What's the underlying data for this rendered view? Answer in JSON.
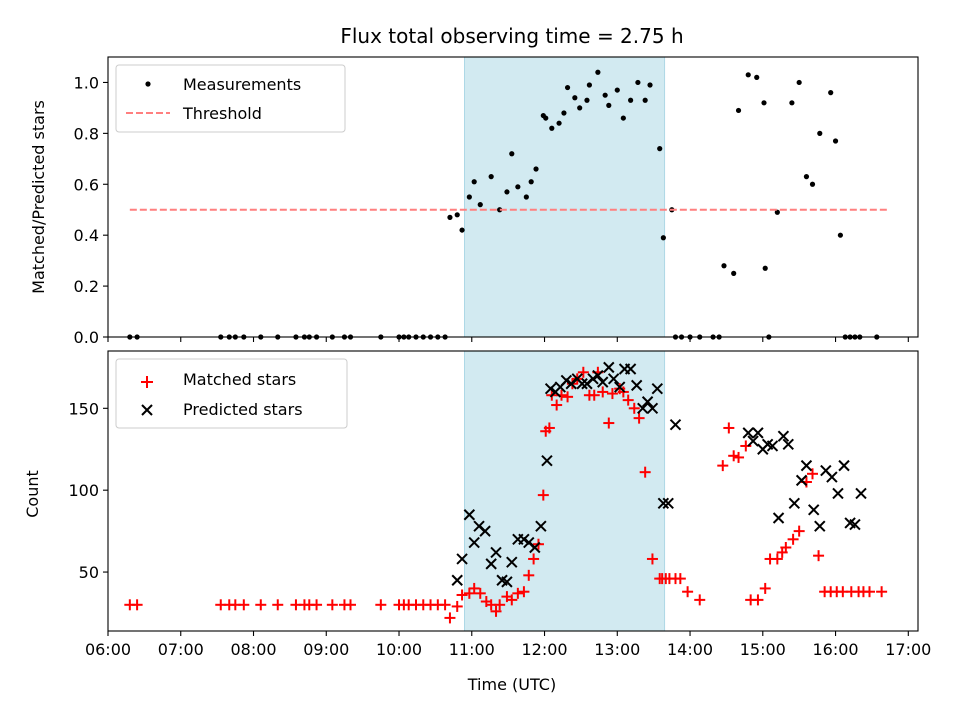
{
  "figure": {
    "title": "Flux total observing time = 2.75 h",
    "shade_color": "#add8e6"
  },
  "chart_data": [
    {
      "type": "scatter",
      "ylabel": "Matched/Predicted stars",
      "xlabel": "",
      "xlim": [
        "06:00",
        "17:08"
      ],
      "ylim": [
        0,
        1.1
      ],
      "yticks": [
        0.0,
        0.2,
        0.4,
        0.6,
        0.8,
        1.0
      ],
      "ytick_labels": [
        "0.0",
        "0.2",
        "0.4",
        "0.6",
        "0.8",
        "1.0"
      ],
      "shaded_region": [
        "10:54",
        "13:39"
      ],
      "legend_position": "upper-left",
      "grid": false,
      "series": [
        {
          "name": "Measurements",
          "marker": "dot",
          "color": "#000000",
          "x": [
            "06:18",
            "06:24",
            "07:33",
            "07:40",
            "07:45",
            "07:52",
            "08:06",
            "08:20",
            "08:35",
            "08:42",
            "08:46",
            "08:52",
            "09:05",
            "09:15",
            "09:20",
            "09:45",
            "10:00",
            "10:04",
            "10:08",
            "10:14",
            "10:20",
            "10:26",
            "10:32",
            "10:38",
            "10:42",
            "10:48",
            "10:52",
            "10:58",
            "11:02",
            "11:07",
            "11:16",
            "11:23",
            "11:29",
            "11:33",
            "11:38",
            "11:45",
            "11:49",
            "11:53",
            "11:59",
            "12:01",
            "12:06",
            "12:12",
            "12:16",
            "12:19",
            "12:25",
            "12:29",
            "12:35",
            "12:37",
            "12:44",
            "12:50",
            "12:53",
            "13:00",
            "13:05",
            "13:11",
            "13:17",
            "13:23",
            "13:27",
            "13:35",
            "13:38",
            "13:45",
            "13:48",
            "13:53",
            "14:00",
            "14:08",
            "14:19",
            "14:24",
            "14:28",
            "14:36",
            "14:40",
            "14:48",
            "14:55",
            "15:01",
            "15:02",
            "15:05",
            "15:12",
            "15:24",
            "15:30",
            "15:36",
            "15:41",
            "15:47",
            "15:56",
            "16:00",
            "16:04",
            "16:08",
            "16:12",
            "16:16",
            "16:20",
            "16:34"
          ],
          "y": [
            0.0,
            0.0,
            0.0,
            0.0,
            0.0,
            0.0,
            0.0,
            0.0,
            0.0,
            0.0,
            0.0,
            0.0,
            0.0,
            0.0,
            0.0,
            0.0,
            0.0,
            0.0,
            0.0,
            0.0,
            0.0,
            0.0,
            0.0,
            0.0,
            0.47,
            0.48,
            0.42,
            0.55,
            0.61,
            0.52,
            0.63,
            0.5,
            0.57,
            0.72,
            0.59,
            0.55,
            0.61,
            0.66,
            0.87,
            0.86,
            0.82,
            0.84,
            0.88,
            0.98,
            0.94,
            0.9,
            0.93,
            0.99,
            1.04,
            0.95,
            0.91,
            0.97,
            0.86,
            0.93,
            1.0,
            0.93,
            0.99,
            0.74,
            0.39,
            0.5,
            0.0,
            0.0,
            0.0,
            0.0,
            0.0,
            0.0,
            0.28,
            0.25,
            0.89,
            1.03,
            1.02,
            0.92,
            0.27,
            0.0,
            0.49,
            0.92,
            1.0,
            0.63,
            0.6,
            0.8,
            0.96,
            0.77,
            0.4,
            0.0,
            0.0,
            0.0,
            0.0,
            0.0
          ]
        },
        {
          "name": "Threshold",
          "style": "dashed",
          "color": "#ff7f7f",
          "x": [
            "06:18",
            "16:43"
          ],
          "y": [
            0.5,
            0.5
          ]
        }
      ]
    },
    {
      "type": "scatter",
      "ylabel": "Count",
      "xlabel": "Time (UTC)",
      "xlim": [
        "06:00",
        "17:08"
      ],
      "ylim": [
        14,
        185
      ],
      "yticks": [
        50,
        100,
        150
      ],
      "ytick_labels": [
        "50",
        "100",
        "150"
      ],
      "xticks": [
        "06:00",
        "07:00",
        "08:00",
        "09:00",
        "10:00",
        "11:00",
        "12:00",
        "13:00",
        "14:00",
        "15:00",
        "16:00",
        "17:00"
      ],
      "shaded_region": [
        "10:54",
        "13:39"
      ],
      "legend_position": "upper-left",
      "grid": false,
      "series": [
        {
          "name": "Matched stars",
          "marker": "plus",
          "color": "#ff0000",
          "x": [
            "06:18",
            "06:24",
            "07:33",
            "07:40",
            "07:45",
            "07:52",
            "08:06",
            "08:20",
            "08:35",
            "08:42",
            "08:46",
            "08:52",
            "09:05",
            "09:15",
            "09:20",
            "09:45",
            "10:00",
            "10:04",
            "10:08",
            "10:14",
            "10:20",
            "10:26",
            "10:32",
            "10:38",
            "10:42",
            "10:48",
            "10:52",
            "10:58",
            "11:02",
            "11:07",
            "11:12",
            "11:16",
            "11:20",
            "11:23",
            "11:29",
            "11:33",
            "11:38",
            "11:43",
            "11:47",
            "11:51",
            "11:55",
            "11:59",
            "12:01",
            "12:04",
            "12:06",
            "12:10",
            "12:14",
            "12:19",
            "12:23",
            "12:27",
            "12:32",
            "12:37",
            "12:41",
            "12:44",
            "12:48",
            "12:53",
            "12:56",
            "13:02",
            "13:05",
            "13:09",
            "13:14",
            "13:18",
            "13:23",
            "13:29",
            "13:35",
            "13:37",
            "13:40",
            "13:43",
            "13:48",
            "13:52",
            "13:58",
            "14:08",
            "14:27",
            "14:32",
            "14:36",
            "14:40",
            "14:46",
            "14:50",
            "14:56",
            "15:02",
            "15:06",
            "15:12",
            "15:16",
            "15:19",
            "15:25",
            "15:30",
            "15:36",
            "15:41",
            "15:46",
            "15:51",
            "15:56",
            "16:01",
            "16:06",
            "16:13",
            "16:19",
            "16:23",
            "16:28",
            "16:38"
          ],
          "y": [
            30,
            30,
            30,
            30,
            30,
            30,
            30,
            30,
            30,
            30,
            30,
            30,
            30,
            30,
            30,
            30,
            30,
            30,
            30,
            30,
            30,
            30,
            30,
            30,
            22,
            29,
            36,
            37,
            40,
            37,
            32,
            30,
            26,
            30,
            35,
            33,
            37,
            38,
            48,
            58,
            67,
            97,
            136,
            138,
            158,
            152,
            158,
            157,
            165,
            168,
            172,
            158,
            158,
            172,
            160,
            141,
            159,
            162,
            160,
            155,
            150,
            144,
            111,
            58,
            46,
            46,
            46,
            46,
            46,
            46,
            38,
            33,
            115,
            138,
            121,
            120,
            127,
            33,
            33,
            40,
            58,
            58,
            62,
            65,
            70,
            75,
            105,
            110,
            60,
            38,
            38,
            38,
            38,
            38,
            38,
            38,
            38,
            38
          ]
        },
        {
          "name": "Predicted stars",
          "marker": "x",
          "color": "#000000",
          "x": [
            "10:48",
            "10:52",
            "10:58",
            "11:02",
            "11:06",
            "11:11",
            "11:16",
            "11:20",
            "11:25",
            "11:29",
            "11:33",
            "11:38",
            "11:43",
            "11:47",
            "11:52",
            "11:57",
            "12:02",
            "12:05",
            "12:09",
            "12:13",
            "12:18",
            "12:22",
            "12:27",
            "12:31",
            "12:35",
            "12:40",
            "12:44",
            "12:48",
            "12:53",
            "12:57",
            "13:02",
            "13:06",
            "13:11",
            "13:16",
            "13:21",
            "13:25",
            "13:29",
            "13:33",
            "13:38",
            "13:42",
            "13:48",
            "14:48",
            "14:52",
            "14:56",
            "15:00",
            "15:04",
            "15:08",
            "15:13",
            "15:17",
            "15:21",
            "15:26",
            "15:32",
            "15:36",
            "15:42",
            "15:47",
            "15:52",
            "15:57",
            "16:02",
            "16:07",
            "16:12",
            "16:16",
            "16:21"
          ],
          "y": [
            45,
            58,
            85,
            68,
            78,
            75,
            55,
            62,
            45,
            44,
            56,
            70,
            70,
            68,
            65,
            78,
            118,
            162,
            160,
            163,
            167,
            165,
            168,
            165,
            165,
            168,
            170,
            166,
            175,
            168,
            163,
            174,
            174,
            164,
            150,
            154,
            150,
            162,
            92,
            92,
            140,
            135,
            130,
            135,
            125,
            128,
            127,
            83,
            133,
            128,
            92,
            106,
            115,
            88,
            78,
            112,
            108,
            98,
            115,
            80,
            79,
            98
          ]
        }
      ]
    }
  ]
}
